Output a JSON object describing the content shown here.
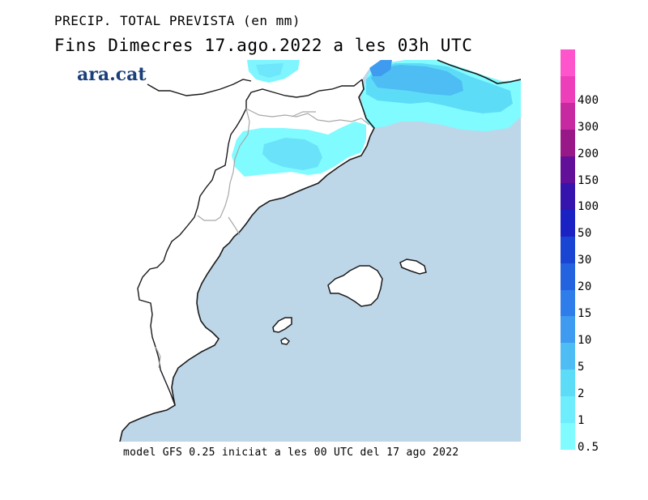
{
  "header": {
    "line1": "PRECIP. TOTAL PREVISTA (en mm)",
    "line2": "Fins Dimecres  17.ago.2022  a les 03h  UTC"
  },
  "logo": {
    "text": "ara.cat"
  },
  "footer": {
    "text": "model GFS 0.25 iniciat a les 00 UTC del 17 ago 2022"
  },
  "colors": {
    "sea": "#bdd7e9",
    "land": "#ffffff",
    "coast": "#1a1a1a",
    "border": "#a8a8a8"
  },
  "legend": {
    "unit": "mm",
    "entries": [
      {
        "label": "0.5",
        "color": "#80fbff"
      },
      {
        "label": "1",
        "color": "#6eeefc"
      },
      {
        "label": "2",
        "color": "#5ddcf8"
      },
      {
        "label": "5",
        "color": "#4dbdf3"
      },
      {
        "label": "10",
        "color": "#3e9bef"
      },
      {
        "label": "15",
        "color": "#2f7ceb"
      },
      {
        "label": "20",
        "color": "#2363e0"
      },
      {
        "label": "30",
        "color": "#1a45d2"
      },
      {
        "label": "50",
        "color": "#1a22c4"
      },
      {
        "label": "100",
        "color": "#3414ad"
      },
      {
        "label": "150",
        "color": "#620f99"
      },
      {
        "label": "200",
        "color": "#981887"
      },
      {
        "label": "300",
        "color": "#c72aa0"
      },
      {
        "label": "400",
        "color": "#ed3fba"
      },
      {
        "label": "",
        "color": "#ff55cc"
      }
    ]
  }
}
